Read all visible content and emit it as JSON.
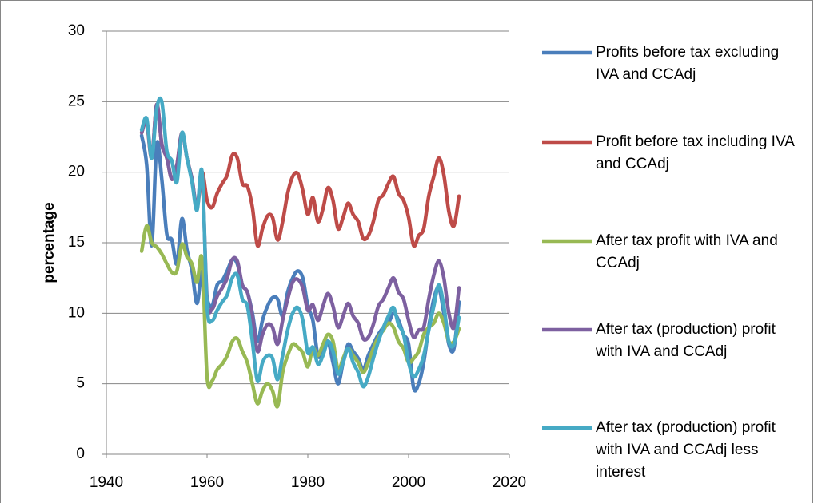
{
  "chart_data": {
    "type": "line",
    "y_label": "percentage",
    "xlim": [
      1940,
      2020
    ],
    "xticks": [
      1940,
      1960,
      1980,
      2000,
      2020
    ],
    "ylim": [
      0,
      30
    ],
    "yticks": [
      0,
      5,
      10,
      15,
      20,
      25,
      30
    ],
    "grid": true,
    "x": [
      1947,
      1948,
      1949,
      1950,
      1951,
      1952,
      1953,
      1954,
      1955,
      1956,
      1957,
      1958,
      1959,
      1960,
      1961,
      1962,
      1963,
      1964,
      1965,
      1966,
      1967,
      1968,
      1969,
      1970,
      1971,
      1972,
      1973,
      1974,
      1975,
      1976,
      1977,
      1978,
      1979,
      1980,
      1981,
      1982,
      1983,
      1984,
      1985,
      1986,
      1987,
      1988,
      1989,
      1990,
      1991,
      1992,
      1993,
      1994,
      1995,
      1996,
      1997,
      1998,
      1999,
      2000,
      2001,
      2002,
      2003,
      2004,
      2005,
      2006,
      2007,
      2008,
      2009,
      2010
    ],
    "series": [
      {
        "name": "Profits before tax excluding IVA and CCAdj",
        "color": "#4a7ebb",
        "values": [
          22.6,
          20.5,
          14.8,
          22.0,
          19.5,
          15.6,
          15.2,
          13.5,
          16.7,
          14.5,
          13.0,
          10.7,
          13.0,
          11.0,
          10.5,
          12.0,
          12.3,
          13.0,
          13.8,
          13.5,
          12.0,
          11.5,
          10.0,
          8.0,
          9.5,
          10.5,
          11.1,
          11.0,
          9.8,
          11.5,
          12.5,
          13.0,
          12.5,
          10.5,
          9.5,
          7.0,
          7.3,
          8.0,
          6.5,
          5.0,
          6.5,
          7.8,
          7.3,
          6.8,
          6.0,
          7.0,
          7.8,
          8.5,
          9.0,
          9.3,
          10.0,
          9.5,
          8.5,
          7.8,
          4.7,
          5.0,
          6.5,
          9.0,
          11.0,
          11.8,
          10.0,
          7.8,
          7.5,
          10.8
        ]
      },
      {
        "name": "Profit before tax including IVA and CCAdj",
        "color": "#be4b48",
        "values": [
          22.8,
          23.5,
          21.0,
          24.8,
          22.0,
          21.0,
          19.5,
          20.5,
          22.8,
          21.0,
          19.5,
          17.5,
          20.0,
          18.0,
          17.5,
          18.5,
          19.2,
          19.8,
          21.2,
          21.0,
          19.2,
          19.0,
          17.5,
          14.8,
          16.0,
          16.9,
          16.8,
          15.2,
          16.5,
          18.5,
          19.7,
          19.9,
          18.7,
          17.0,
          18.2,
          16.5,
          17.4,
          18.9,
          18.0,
          16.0,
          16.8,
          17.8,
          17.0,
          16.5,
          15.3,
          15.5,
          16.5,
          18.0,
          18.4,
          19.2,
          19.7,
          18.5,
          18.0,
          16.8,
          14.8,
          15.5,
          16.0,
          18.3,
          19.7,
          21.0,
          19.8,
          17.2,
          16.2,
          18.3
        ]
      },
      {
        "name": "After tax profit with IVA and CCAdj",
        "color": "#98b954",
        "values": [
          14.4,
          16.2,
          15.0,
          14.7,
          14.2,
          13.5,
          12.9,
          13.0,
          14.9,
          14.0,
          13.5,
          12.2,
          13.8,
          5.5,
          5.2,
          6.0,
          6.4,
          7.0,
          8.0,
          8.2,
          7.3,
          6.5,
          5.0,
          3.6,
          4.5,
          5.0,
          4.5,
          3.4,
          5.8,
          7.0,
          7.8,
          7.6,
          7.2,
          6.2,
          7.5,
          7.0,
          7.8,
          8.5,
          8.0,
          6.0,
          6.8,
          7.5,
          7.0,
          6.5,
          5.8,
          6.5,
          7.5,
          8.3,
          8.8,
          9.3,
          9.0,
          8.0,
          7.5,
          6.5,
          6.8,
          7.3,
          8.5,
          9.0,
          9.3,
          10.0,
          9.3,
          8.0,
          8.0,
          8.9
        ]
      },
      {
        "name": "After tax (production) profit with IVA and CCAdj",
        "color": "#7d60a0",
        "values": [
          22.8,
          23.6,
          21.0,
          24.8,
          22.0,
          21.0,
          19.5,
          20.5,
          22.8,
          21.0,
          19.5,
          17.5,
          19.8,
          11.0,
          10.3,
          11.2,
          11.8,
          12.5,
          13.8,
          13.7,
          12.0,
          11.5,
          9.8,
          7.3,
          8.5,
          9.2,
          9.0,
          7.8,
          9.5,
          11.0,
          12.2,
          12.4,
          11.8,
          10.2,
          10.6,
          9.5,
          10.5,
          11.4,
          10.5,
          9.0,
          9.8,
          10.7,
          9.8,
          9.3,
          8.2,
          8.3,
          9.2,
          10.5,
          11.0,
          11.8,
          12.5,
          11.5,
          11.0,
          9.5,
          8.3,
          8.8,
          9.0,
          11.0,
          12.7,
          13.7,
          12.5,
          10.0,
          9.0,
          11.8
        ]
      },
      {
        "name": "After tax (production) profit with IVA and CCAdj less interest",
        "color": "#46aac5",
        "values": [
          23.0,
          23.8,
          21.0,
          24.5,
          25.0,
          21.5,
          20.8,
          19.3,
          22.8,
          21.0,
          19.3,
          17.3,
          20.0,
          10.5,
          9.5,
          10.2,
          10.8,
          11.3,
          12.5,
          12.7,
          11.0,
          10.5,
          8.0,
          5.2,
          6.5,
          7.0,
          6.8,
          5.3,
          7.0,
          8.8,
          10.0,
          10.4,
          9.5,
          7.2,
          7.6,
          6.4,
          7.0,
          8.0,
          7.3,
          5.7,
          6.5,
          7.5,
          6.5,
          5.8,
          4.8,
          5.5,
          6.8,
          8.0,
          9.0,
          9.8,
          10.4,
          9.2,
          8.5,
          6.5,
          5.5,
          6.0,
          7.0,
          8.8,
          10.5,
          12.0,
          10.5,
          8.0,
          7.8,
          9.7
        ]
      }
    ]
  }
}
